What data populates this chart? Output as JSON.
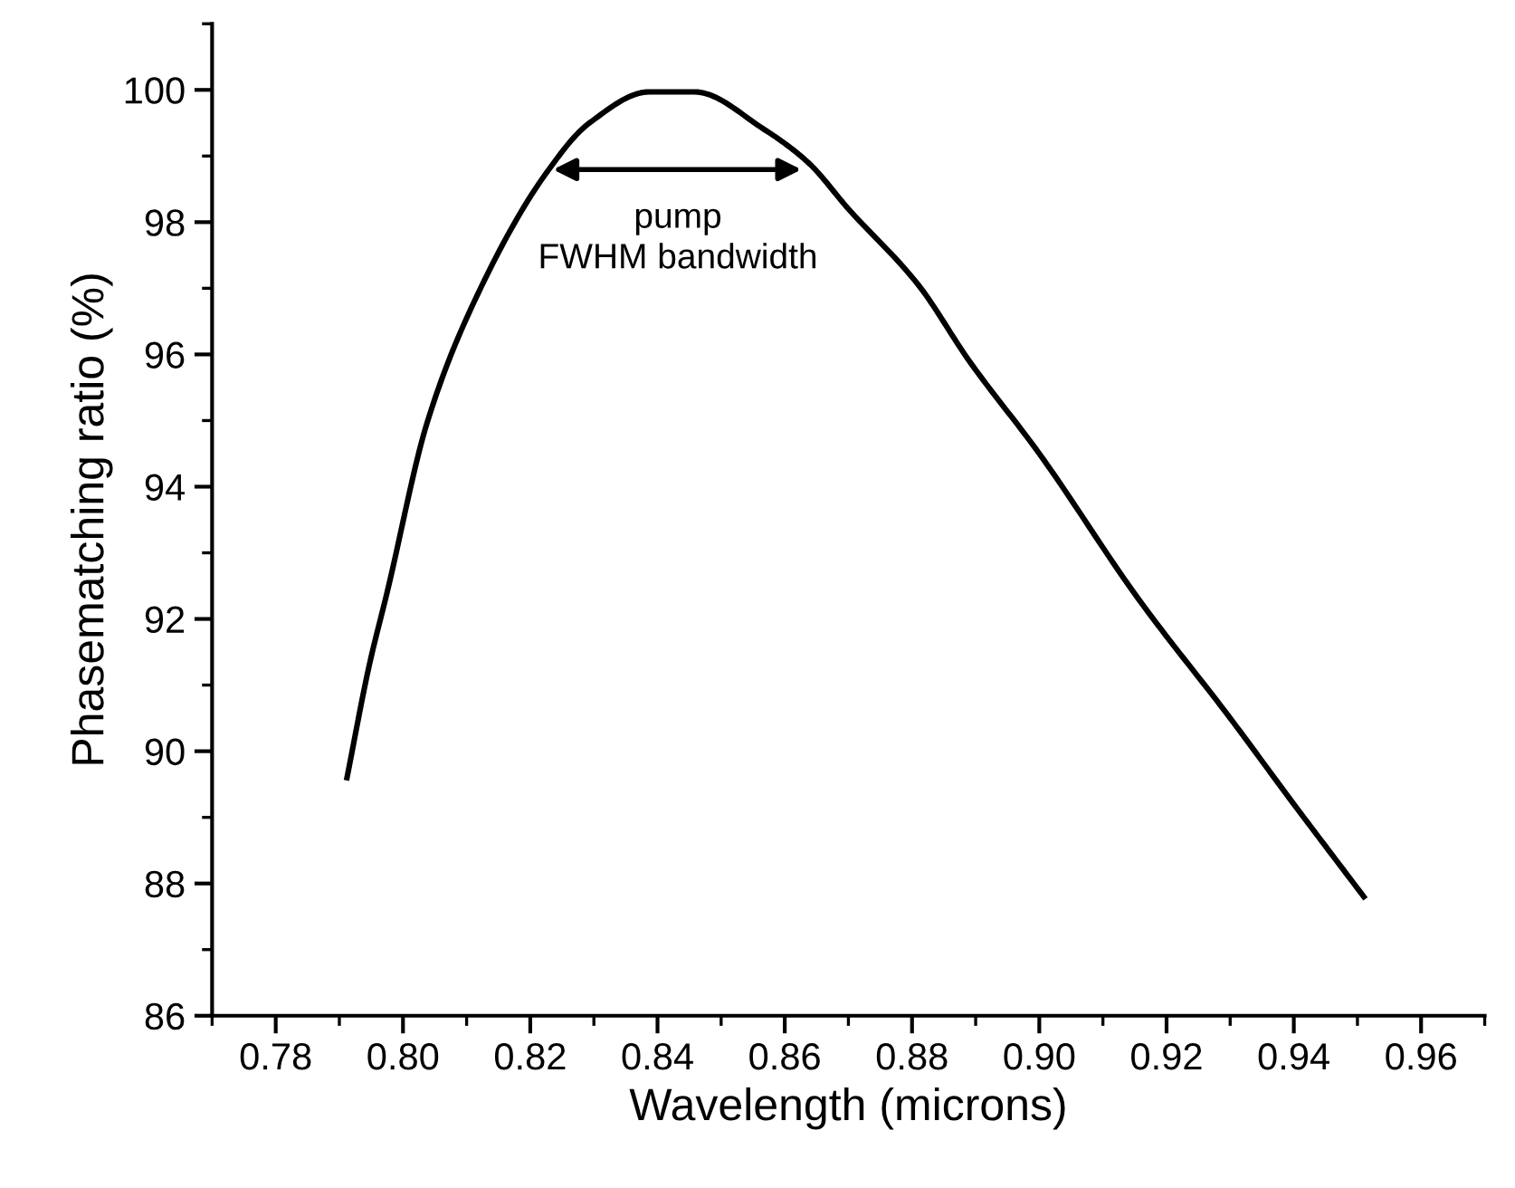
{
  "chart_data": {
    "type": "line",
    "xlabel": "Wavelength (microns)",
    "ylabel": "Phasematching ratio (%)",
    "x": [
      0.7912,
      0.7947,
      0.7975,
      0.8038,
      0.8112,
      0.8225,
      0.8293,
      0.8387,
      0.8458,
      0.8568,
      0.8637,
      0.87,
      0.881,
      0.889,
      0.9,
      0.9156,
      0.93,
      0.94,
      0.951
    ],
    "series": [
      {
        "color": "#000000",
        "values": [
          89.6,
          91.3,
          92.4,
          94.97,
          96.8,
          98.74,
          99.5,
          99.97,
          99.97,
          99.4,
          98.9,
          98.2,
          97.05,
          95.9,
          94.5,
          92.3,
          90.5,
          89.2,
          87.8
        ]
      }
    ],
    "xlim": [
      0.77,
      0.97
    ],
    "xticks": [
      0.78,
      {
        "value": 0.8,
        "label": "0.80"
      },
      0.82,
      0.84,
      0.86,
      0.88,
      {
        "value": 0.9,
        "label": "0.90"
      },
      0.92,
      0.94,
      0.96
    ],
    "ylim": [
      86,
      101
    ],
    "yticks": [
      86,
      88,
      90,
      92,
      94,
      96,
      98,
      100
    ],
    "annotations": [
      "pump\nFWHM bandwidth"
    ],
    "grid": false,
    "marker": "none",
    "line_style": "solid"
  }
}
